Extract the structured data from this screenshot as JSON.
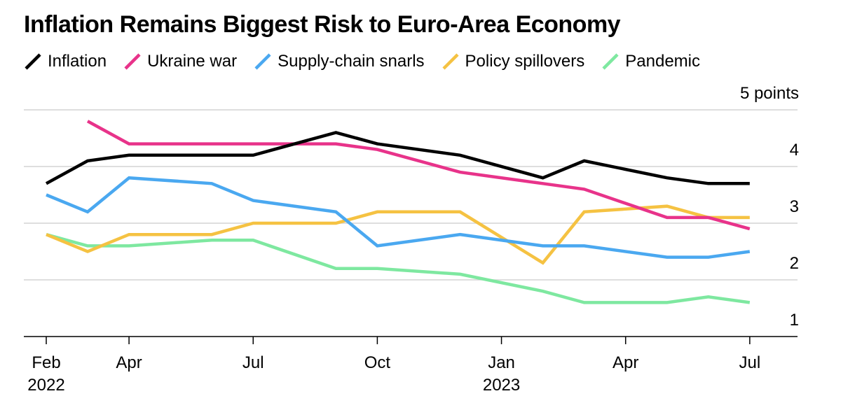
{
  "chart_data": {
    "type": "line",
    "title": "Inflation Remains Biggest Risk to Euro-Area Economy",
    "ylabel": "",
    "xlabel": "",
    "unit_label": "5 points",
    "ylim": [
      1,
      5
    ],
    "y_ticks": [
      "4",
      "3",
      "2",
      "1"
    ],
    "x_ticks": [
      {
        "label": "Feb",
        "sub": "2022",
        "date": "2022-02"
      },
      {
        "label": "Apr",
        "sub": "",
        "date": "2022-04"
      },
      {
        "label": "Jul",
        "sub": "",
        "date": "2022-07"
      },
      {
        "label": "Oct",
        "sub": "",
        "date": "2022-10"
      },
      {
        "label": "Jan",
        "sub": "2023",
        "date": "2023-01"
      },
      {
        "label": "Apr",
        "sub": "",
        "date": "2023-04"
      },
      {
        "label": "Jul",
        "sub": "",
        "date": "2023-07"
      }
    ],
    "grid": true,
    "legend_position": "top-left",
    "series": [
      {
        "name": "Inflation",
        "color": "#000000",
        "points": [
          [
            "2022-02",
            3.7
          ],
          [
            "2022-03",
            4.1
          ],
          [
            "2022-04",
            4.2
          ],
          [
            "2022-07",
            4.2
          ],
          [
            "2022-09",
            4.6
          ],
          [
            "2022-10",
            4.4
          ],
          [
            "2022-12",
            4.2
          ],
          [
            "2023-02",
            3.8
          ],
          [
            "2023-03",
            4.1
          ],
          [
            "2023-05",
            3.8
          ],
          [
            "2023-06",
            3.7
          ],
          [
            "2023-07",
            3.7
          ]
        ]
      },
      {
        "name": "Ukraine war",
        "color": "#e8338a",
        "points": [
          [
            "2022-03",
            4.8
          ],
          [
            "2022-04",
            4.4
          ],
          [
            "2022-07",
            4.4
          ],
          [
            "2022-09",
            4.4
          ],
          [
            "2022-10",
            4.3
          ],
          [
            "2022-12",
            3.9
          ],
          [
            "2023-02",
            3.7
          ],
          [
            "2023-03",
            3.6
          ],
          [
            "2023-05",
            3.1
          ],
          [
            "2023-06",
            3.1
          ],
          [
            "2023-07",
            2.9
          ]
        ]
      },
      {
        "name": "Supply-chain snarls",
        "color": "#4aa8f0",
        "points": [
          [
            "2022-02",
            3.5
          ],
          [
            "2022-03",
            3.2
          ],
          [
            "2022-04",
            3.8
          ],
          [
            "2022-06",
            3.7
          ],
          [
            "2022-07",
            3.4
          ],
          [
            "2022-09",
            3.2
          ],
          [
            "2022-10",
            2.6
          ],
          [
            "2022-12",
            2.8
          ],
          [
            "2023-02",
            2.6
          ],
          [
            "2023-03",
            2.6
          ],
          [
            "2023-05",
            2.4
          ],
          [
            "2023-06",
            2.4
          ],
          [
            "2023-07",
            2.5
          ]
        ]
      },
      {
        "name": "Policy spillovers",
        "color": "#f5c242",
        "points": [
          [
            "2022-02",
            2.8
          ],
          [
            "2022-03",
            2.5
          ],
          [
            "2022-04",
            2.8
          ],
          [
            "2022-06",
            2.8
          ],
          [
            "2022-07",
            3.0
          ],
          [
            "2022-09",
            3.0
          ],
          [
            "2022-10",
            3.2
          ],
          [
            "2022-12",
            3.2
          ],
          [
            "2023-02",
            2.3
          ],
          [
            "2023-03",
            3.2
          ],
          [
            "2023-05",
            3.3
          ],
          [
            "2023-06",
            3.1
          ],
          [
            "2023-07",
            3.1
          ]
        ]
      },
      {
        "name": "Pandemic",
        "color": "#7ee8a0",
        "points": [
          [
            "2022-02",
            2.8
          ],
          [
            "2022-03",
            2.6
          ],
          [
            "2022-04",
            2.6
          ],
          [
            "2022-06",
            2.7
          ],
          [
            "2022-07",
            2.7
          ],
          [
            "2022-09",
            2.2
          ],
          [
            "2022-10",
            2.2
          ],
          [
            "2022-12",
            2.1
          ],
          [
            "2023-02",
            1.8
          ],
          [
            "2023-03",
            1.6
          ],
          [
            "2023-05",
            1.6
          ],
          [
            "2023-06",
            1.7
          ],
          [
            "2023-07",
            1.6
          ]
        ]
      }
    ]
  }
}
